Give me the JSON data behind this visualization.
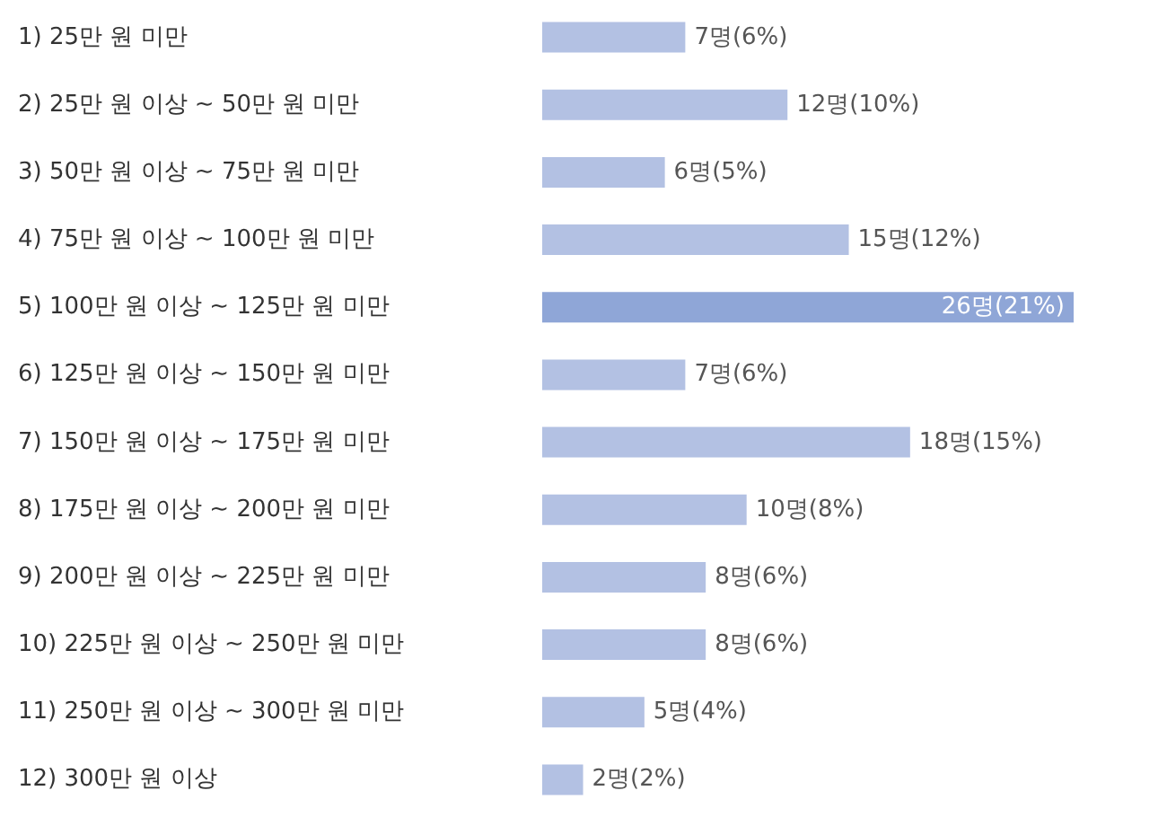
{
  "chart_data": {
    "type": "bar",
    "orientation": "horizontal",
    "categories": [
      "1) 25만 원 미만",
      "2) 25만 원 이상 ~ 50만 원 미만",
      "3) 50만 원 이상 ~ 75만 원 미만",
      "4) 75만 원 이상 ~ 100만 원 미만",
      "5) 100만 원 이상 ~ 125만 원 미만",
      "6) 125만 원 이상 ~ 150만 원 미만",
      "7) 150만 원 이상 ~ 175만 원 미만",
      "8) 175만 원 이상 ~ 200만 원 미만",
      "9) 200만 원 이상 ~ 225만 원 미만",
      "10) 225만 원 이상 ~ 250만 원 미만",
      "11) 250만 원 이상 ~ 300만 원 미만",
      "12) 300만 원 이상"
    ],
    "values": [
      7,
      12,
      6,
      15,
      26,
      7,
      18,
      10,
      8,
      8,
      5,
      2
    ],
    "value_labels": [
      "7명(6%)",
      "12명(10%)",
      "6명(5%)",
      "15명(12%)",
      "26명(21%)",
      "7명(6%)",
      "18명(15%)",
      "10명(8%)",
      "8명(6%)",
      "8명(6%)",
      "5명(4%)",
      "2명(2%)"
    ],
    "colors": [
      "#b3c1e3",
      "#b3c1e3",
      "#b3c1e3",
      "#b3c1e3",
      "#8fa6d7",
      "#b3c1e3",
      "#b3c1e3",
      "#b3c1e3",
      "#b3c1e3",
      "#b3c1e3",
      "#b3c1e3",
      "#b3c1e3"
    ],
    "tick_labels": "y"
  }
}
